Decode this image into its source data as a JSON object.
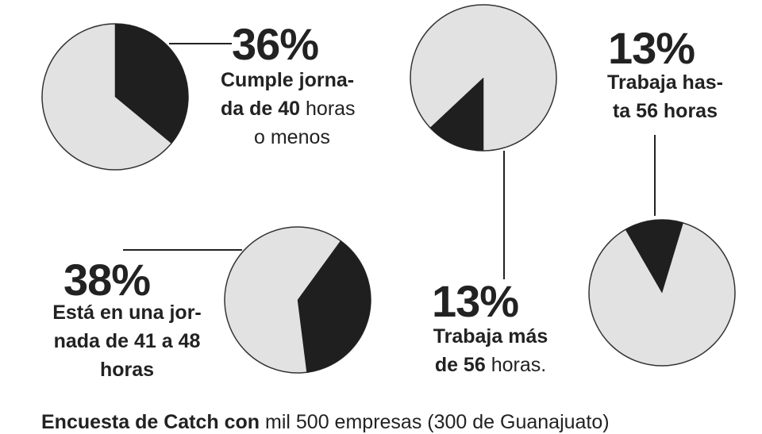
{
  "chart_data": [
    {
      "type": "pie",
      "values": [
        36,
        64
      ],
      "highlight_index": 0,
      "percent_label": "36%",
      "label_bold": "Cumple jorna- da de 40",
      "label_regular": "horas o menos",
      "colors": [
        "#1f1f1f",
        "#e2e2e2"
      ]
    },
    {
      "type": "pie",
      "values": [
        13,
        87
      ],
      "highlight_index": 0,
      "percent_label": "13%",
      "label_bold": "Trabaja más de 56",
      "label_regular": "horas.",
      "colors": [
        "#1f1f1f",
        "#e2e2e2"
      ]
    },
    {
      "type": "pie",
      "values": [
        13,
        87
      ],
      "highlight_index": 0,
      "percent_label": "13%",
      "label_bold": "Trabaja has- ta 56 horas",
      "label_regular": "",
      "colors": [
        "#1f1f1f",
        "#e2e2e2"
      ]
    },
    {
      "type": "pie",
      "values": [
        38,
        62
      ],
      "highlight_index": 0,
      "percent_label": "38%",
      "label_bold": "Está en una jor- nada de 41 a 48 horas",
      "label_regular": "",
      "colors": [
        "#1f1f1f",
        "#e2e2e2"
      ]
    }
  ],
  "labels": {
    "p36": {
      "pct": "36%",
      "l1": "Cumple jorna-",
      "l2b": "da de 40",
      "l2r": " horas",
      "l3": "o menos"
    },
    "p13a": {
      "pct": "13%",
      "l1": "Trabaja más",
      "l2b": "de 56",
      "l2r": " horas."
    },
    "p13b": {
      "pct": "13%",
      "l1": "Trabaja has-",
      "l2": "ta 56 horas"
    },
    "p38": {
      "pct": "38%",
      "l1": "Está en una jor-",
      "l2": "nada de 41 a 48",
      "l3": "horas"
    }
  },
  "footer": {
    "bold": "Encuesta de Catch con",
    "regular": " mil 500 empresas (300 de Guanajuato)"
  },
  "colors": {
    "dark": "#1f1f1f",
    "light": "#e2e2e2",
    "stroke": "#333333",
    "text": "#222222"
  }
}
